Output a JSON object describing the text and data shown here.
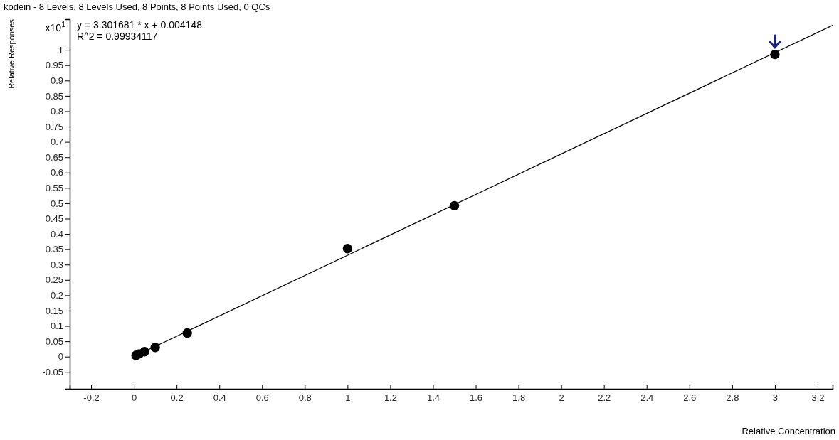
{
  "chart_data": {
    "type": "scatter",
    "title": "kodein - 8 Levels, 8 Levels Used, 8 Points, 8 Points Used, 0 QCs",
    "xlabel": "Relative Concentration",
    "ylabel": "Relative Responses",
    "annotations": [
      "x10$^{1}$",
      "y = 3.301681 * x  + 0.004148",
      "R^2 = 0.99934117"
    ],
    "xlim": [
      -0.3,
      3.27
    ],
    "ylim": [
      -0.105,
      1.1
    ],
    "xticks": [
      -0.2,
      0,
      0.2,
      0.4,
      0.6,
      0.8,
      1,
      1.2,
      1.4,
      1.6,
      1.8,
      2,
      2.2,
      2.4,
      2.6,
      2.8,
      3,
      3.2
    ],
    "yticks": [
      -0.05,
      0,
      0.05,
      0.1,
      0.15,
      0.2,
      0.25,
      0.3,
      0.35,
      0.4,
      0.45,
      0.5,
      0.55,
      0.6,
      0.65,
      0.7,
      0.75,
      0.8,
      0.85,
      0.9,
      0.95,
      1
    ],
    "marker": "circle",
    "grid": false,
    "series": [
      {
        "color": "#000000",
        "x": [
          0.01,
          0.025,
          0.05,
          0.1,
          0.25,
          1,
          1.5,
          3
        ],
        "values": [
          0.004,
          0.009,
          0.016,
          0.03,
          0.077,
          0.352,
          0.492,
          0.985
        ]
      },
      {
        "type": "line",
        "marker": "none",
        "color": "#000000",
        "x": [
          -0.01,
          3.27
        ],
        "values": [
          -0.003,
          1.08
        ]
      }
    ]
  }
}
